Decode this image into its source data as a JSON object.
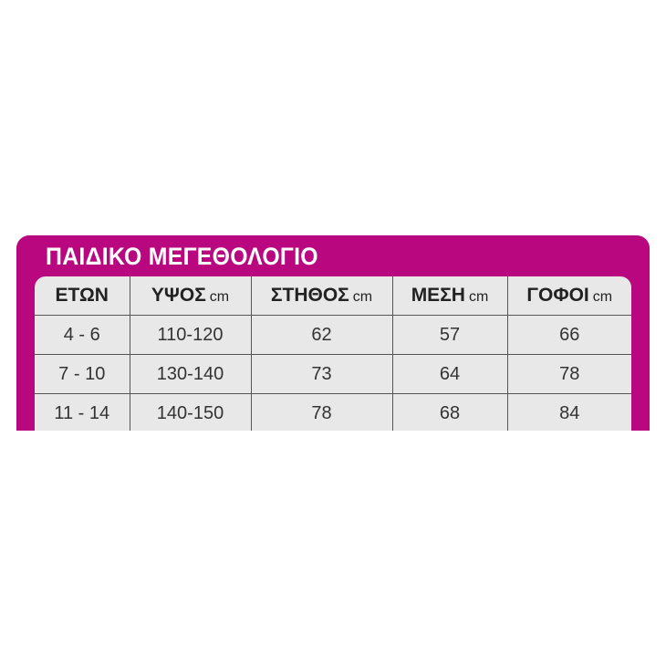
{
  "title": "ΠΑΙΔΙΚΟ ΜΕΓΕΘΟΛΟΓΙΟ",
  "colors": {
    "accent": "#b8077f",
    "table_bg": "#e8e8e8"
  },
  "columns": [
    {
      "label": "ΕΤΩΝ",
      "unit": ""
    },
    {
      "label": "ΥΨΟΣ",
      "unit": "cm"
    },
    {
      "label": "ΣΤΗΘΟΣ",
      "unit": "cm"
    },
    {
      "label": "ΜΕΣΗ",
      "unit": "cm"
    },
    {
      "label": "ΓΟΦΟΙ",
      "unit": "cm"
    }
  ],
  "rows": [
    [
      "4 - 6",
      "110-120",
      "62",
      "57",
      "66"
    ],
    [
      "7 - 10",
      "130-140",
      "73",
      "64",
      "78"
    ],
    [
      "11 - 14",
      "140-150",
      "78",
      "68",
      "84"
    ]
  ]
}
